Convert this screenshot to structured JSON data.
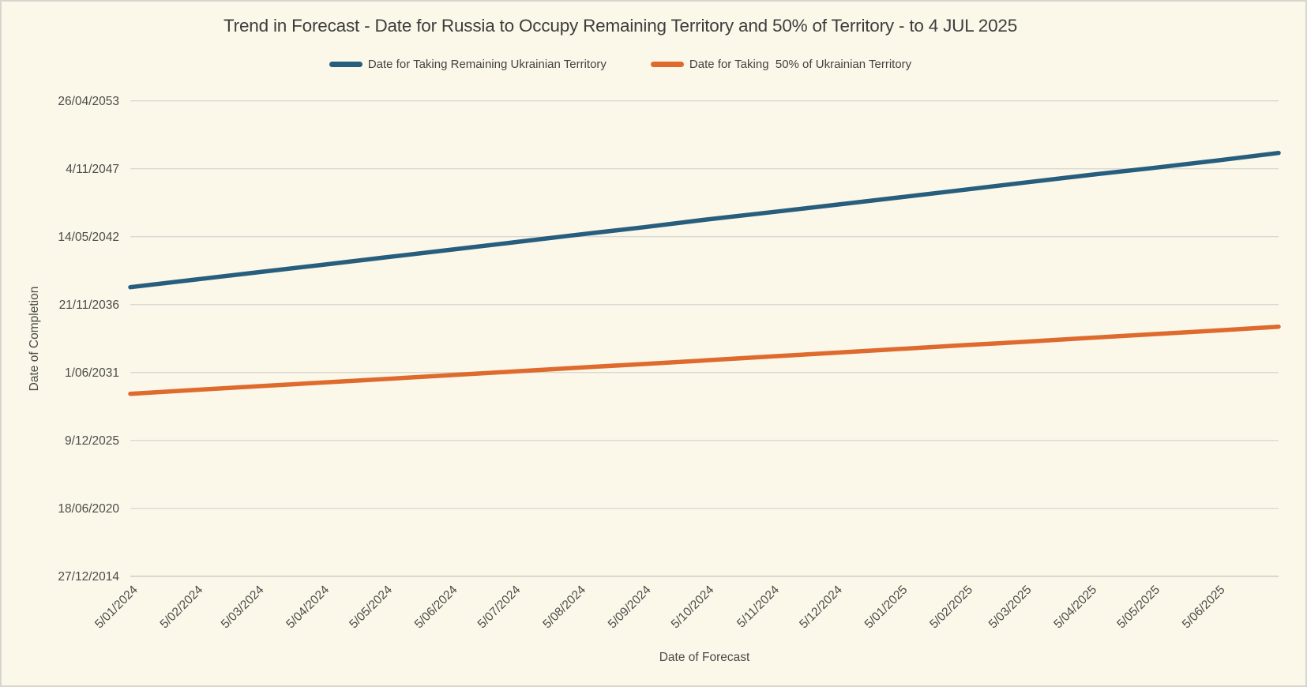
{
  "canvas": {
    "background": "#FCF8E9",
    "border_color": "#D8D5CF",
    "grid_color": "#DAD8D3",
    "text_color": "#424242"
  },
  "chart_data": {
    "type": "line",
    "title": "Trend in Forecast - Date for Russia to Occupy Remaining Territory and 50% of Territory - to 4 JUL 2025",
    "xlabel": "Date of Forecast",
    "ylabel": "Date of Completion",
    "grid": "horizontal-only",
    "legend_position": "top-center",
    "date_format": "d/mm/yyyy",
    "x_range": [
      "5/01/2024",
      "4/07/2025"
    ],
    "y_range": [
      "27/12/2014",
      "26/04/2053"
    ],
    "y_tick_labels": [
      "26/04/2053",
      "4/11/2047",
      "14/05/2042",
      "21/11/2036",
      "1/06/2031",
      "9/12/2025",
      "18/06/2020",
      "27/12/2014"
    ],
    "x_tick_labels": [
      "5/01/2024",
      "5/02/2024",
      "5/03/2024",
      "5/04/2024",
      "5/05/2024",
      "5/06/2024",
      "5/07/2024",
      "5/08/2024",
      "5/09/2024",
      "5/10/2024",
      "5/11/2024",
      "5/12/2024",
      "5/01/2025",
      "5/02/2025",
      "5/03/2025",
      "5/04/2025",
      "5/05/2025",
      "5/06/2025"
    ],
    "x": [
      "5/01/2024",
      "5/02/2024",
      "5/03/2024",
      "5/04/2024",
      "5/05/2024",
      "5/06/2024",
      "5/07/2024",
      "5/08/2024",
      "5/09/2024",
      "5/10/2024",
      "5/11/2024",
      "5/12/2024",
      "5/01/2025",
      "5/02/2025",
      "5/03/2025",
      "5/04/2025",
      "5/05/2025",
      "5/06/2025",
      "4/07/2025"
    ],
    "series": [
      {
        "name": "Date for Taking Remaining Ukrainian Territory",
        "color": "#275E7D",
        "values": [
          "17/04/2038",
          "28/11/2038",
          "25/06/2039",
          "2/02/2040",
          "10/09/2040",
          "20/04/2041",
          "25/11/2041",
          "10/07/2042",
          "15/02/2043",
          "1/10/2043",
          "5/05/2044",
          "5/12/2044",
          "15/07/2045",
          "25/02/2046",
          "20/09/2046",
          "5/05/2047",
          "25/11/2047",
          "5/07/2048",
          "12/02/2049"
        ]
      },
      {
        "name": "Date for Taking  50% of Ukrainian Territory",
        "color": "#DE6A2E",
        "values": [
          "11/09/2029",
          "2/01/2030",
          "18/04/2030",
          "8/08/2030",
          "20/11/2030",
          "15/03/2031",
          "28/06/2031",
          "20/10/2031",
          "5/02/2032",
          "25/05/2032",
          "15/09/2032",
          "1/01/2033",
          "25/04/2033",
          "15/08/2033",
          "20/11/2033",
          "15/03/2034",
          "1/07/2034",
          "20/10/2034",
          "9/02/2035"
        ]
      }
    ]
  }
}
